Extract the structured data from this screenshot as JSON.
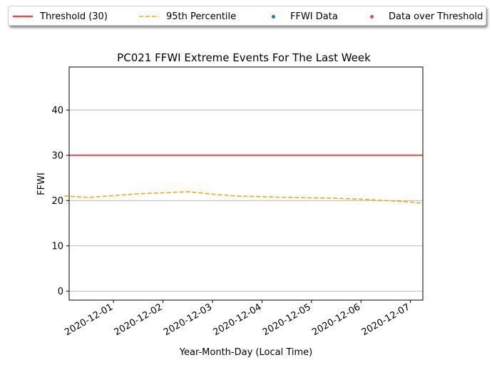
{
  "chart_data": {
    "type": "line",
    "title": "PC021 FFWI Extreme Events For The Last Week",
    "xlabel": "Year-Month-Day (Local Time)",
    "ylabel": "FFWI",
    "x_tick_labels": [
      "2020-12-01",
      "2020-12-02",
      "2020-12-03",
      "2020-12-04",
      "2020-12-05",
      "2020-12-06",
      "2020-12-07"
    ],
    "y_ticks": [
      0,
      10,
      20,
      30,
      40
    ],
    "xlim": [
      "2020-11-30T02:30",
      "2020-12-07T06:00"
    ],
    "ylim": [
      -2,
      49.5
    ],
    "grid": "horizontal",
    "legend_position": "top (above plot, framed with shadow)",
    "series": [
      {
        "name": "Threshold (30)",
        "style": "solid",
        "color": "#e84a4a",
        "points": [
          [
            "2020-11-30T02:30",
            30
          ],
          [
            "2020-12-07T06:00",
            30
          ]
        ]
      },
      {
        "name": "95th Percentile",
        "style": "dashed",
        "color": "#ffa500",
        "points": [
          [
            "2020-11-30T00:00",
            21.0
          ],
          [
            "2020-11-30T12:00",
            20.7
          ],
          [
            "2020-12-01T00:00",
            21.1
          ],
          [
            "2020-12-01T12:00",
            21.5
          ],
          [
            "2020-12-02T00:00",
            21.7
          ],
          [
            "2020-12-02T12:00",
            21.95
          ],
          [
            "2020-12-03T00:00",
            21.4
          ],
          [
            "2020-12-03T12:00",
            21.0
          ],
          [
            "2020-12-04T00:00",
            20.85
          ],
          [
            "2020-12-04T12:00",
            20.7
          ],
          [
            "2020-12-05T00:00",
            20.6
          ],
          [
            "2020-12-05T12:00",
            20.5
          ],
          [
            "2020-12-06T00:00",
            20.3
          ],
          [
            "2020-12-06T12:00",
            20.0
          ],
          [
            "2020-12-07T00:00",
            19.7
          ],
          [
            "2020-12-07T06:00",
            19.4
          ]
        ]
      },
      {
        "name": "FFWI Data",
        "style": "marker",
        "color": "#1f77b4",
        "points": []
      },
      {
        "name": "Data over Threshold",
        "style": "marker",
        "color": "#d9534f",
        "points": []
      }
    ]
  }
}
